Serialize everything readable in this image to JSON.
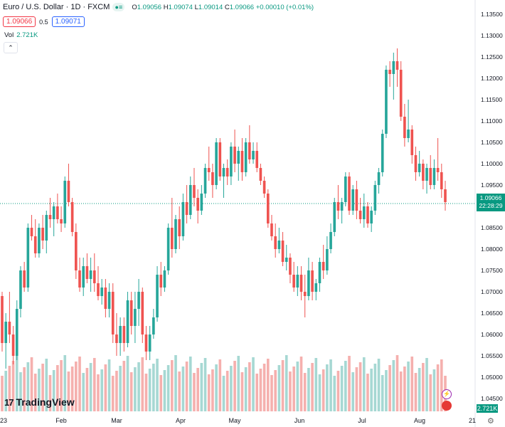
{
  "header": {
    "symbol": "Euro / U.S. Dollar · 1D · FXCM",
    "open_label": "O",
    "open": "1.09056",
    "high_label": "H",
    "high": "1.09074",
    "low_label": "L",
    "low": "1.09014",
    "close_label": "C",
    "close": "1.09066",
    "change": "+0.00010 (+0.01%)"
  },
  "trade": {
    "sell": "1.09066",
    "spread": "0.5",
    "buy": "1.09071"
  },
  "volume": {
    "label": "Vol",
    "value": "2.721K",
    "badge": "2.721K"
  },
  "price_badge": {
    "price": "1.09066",
    "countdown": "22:28:29"
  },
  "brand": {
    "name": "TradingView",
    "mark": "17"
  },
  "colors": {
    "up": "#26a69a",
    "down": "#ef5350",
    "vol_up": "#a6d8d3",
    "vol_down": "#f5b0ae",
    "badge": "#089981"
  },
  "chart_data": {
    "type": "candlestick",
    "title": "Euro / U.S. Dollar · 1D · FXCM",
    "ylim": [
      1.042,
      1.136
    ],
    "y_ticks": [
      "1.13500",
      "1.13000",
      "1.12500",
      "1.12000",
      "1.11500",
      "1.11000",
      "1.10500",
      "1.10000",
      "1.09500",
      "1.09000",
      "1.08500",
      "1.08000",
      "1.07500",
      "1.07000",
      "1.06500",
      "1.06000",
      "1.05500",
      "1.05000",
      "1.04500"
    ],
    "x_labels": [
      "23",
      "Feb",
      "Mar",
      "Apr",
      "May",
      "Jun",
      "Jul",
      "Aug",
      "21"
    ],
    "last_price": 1.09066,
    "ohlc_approx": [
      [
        1.069,
        1.07,
        1.056,
        1.058
      ],
      [
        1.058,
        1.065,
        1.052,
        1.063
      ],
      [
        1.063,
        1.07,
        1.058,
        1.06
      ],
      [
        1.06,
        1.062,
        1.053,
        1.055
      ],
      [
        1.055,
        1.068,
        1.054,
        1.066
      ],
      [
        1.066,
        1.076,
        1.064,
        1.075
      ],
      [
        1.075,
        1.077,
        1.07,
        1.071
      ],
      [
        1.071,
        1.086,
        1.07,
        1.085
      ],
      [
        1.085,
        1.088,
        1.082,
        1.083
      ],
      [
        1.083,
        1.087,
        1.078,
        1.079
      ],
      [
        1.079,
        1.086,
        1.078,
        1.085
      ],
      [
        1.085,
        1.088,
        1.08,
        1.082
      ],
      [
        1.082,
        1.089,
        1.079,
        1.088
      ],
      [
        1.088,
        1.092,
        1.085,
        1.087
      ],
      [
        1.087,
        1.091,
        1.083,
        1.09
      ],
      [
        1.09,
        1.093,
        1.086,
        1.087
      ],
      [
        1.087,
        1.09,
        1.084,
        1.086
      ],
      [
        1.086,
        1.097,
        1.085,
        1.096
      ],
      [
        1.096,
        1.1,
        1.09,
        1.091
      ],
      [
        1.091,
        1.092,
        1.083,
        1.084
      ],
      [
        1.084,
        1.086,
        1.073,
        1.075
      ],
      [
        1.075,
        1.078,
        1.07,
        1.071
      ],
      [
        1.071,
        1.078,
        1.069,
        1.076
      ],
      [
        1.076,
        1.079,
        1.072,
        1.073
      ],
      [
        1.073,
        1.078,
        1.07,
        1.075
      ],
      [
        1.075,
        1.079,
        1.07,
        1.072
      ],
      [
        1.072,
        1.076,
        1.068,
        1.069
      ],
      [
        1.069,
        1.073,
        1.067,
        1.071
      ],
      [
        1.071,
        1.073,
        1.064,
        1.066
      ],
      [
        1.066,
        1.072,
        1.064,
        1.07
      ],
      [
        1.07,
        1.072,
        1.058,
        1.06
      ],
      [
        1.06,
        1.065,
        1.055,
        1.058
      ],
      [
        1.058,
        1.064,
        1.055,
        1.062
      ],
      [
        1.062,
        1.064,
        1.056,
        1.058
      ],
      [
        1.058,
        1.07,
        1.057,
        1.068
      ],
      [
        1.068,
        1.07,
        1.06,
        1.062
      ],
      [
        1.062,
        1.07,
        1.058,
        1.066
      ],
      [
        1.066,
        1.073,
        1.062,
        1.07
      ],
      [
        1.07,
        1.071,
        1.058,
        1.06
      ],
      [
        1.06,
        1.062,
        1.054,
        1.056
      ],
      [
        1.056,
        1.062,
        1.054,
        1.06
      ],
      [
        1.06,
        1.066,
        1.059,
        1.064
      ],
      [
        1.064,
        1.076,
        1.063,
        1.074
      ],
      [
        1.074,
        1.077,
        1.069,
        1.071
      ],
      [
        1.071,
        1.076,
        1.07,
        1.075
      ],
      [
        1.075,
        1.086,
        1.074,
        1.085
      ],
      [
        1.085,
        1.092,
        1.078,
        1.08
      ],
      [
        1.08,
        1.088,
        1.079,
        1.087
      ],
      [
        1.087,
        1.09,
        1.08,
        1.083
      ],
      [
        1.083,
        1.093,
        1.082,
        1.091
      ],
      [
        1.091,
        1.095,
        1.086,
        1.088
      ],
      [
        1.088,
        1.097,
        1.087,
        1.095
      ],
      [
        1.095,
        1.099,
        1.09,
        1.092
      ],
      [
        1.092,
        1.094,
        1.086,
        1.089
      ],
      [
        1.089,
        1.095,
        1.088,
        1.093
      ],
      [
        1.093,
        1.1,
        1.092,
        1.099
      ],
      [
        1.099,
        1.104,
        1.096,
        1.098
      ],
      [
        1.098,
        1.1,
        1.092,
        1.095
      ],
      [
        1.095,
        1.106,
        1.094,
        1.105
      ],
      [
        1.105,
        1.106,
        1.096,
        1.097
      ],
      [
        1.097,
        1.1,
        1.092,
        1.099
      ],
      [
        1.099,
        1.101,
        1.095,
        1.097
      ],
      [
        1.097,
        1.105,
        1.095,
        1.104
      ],
      [
        1.104,
        1.108,
        1.098,
        1.1
      ],
      [
        1.1,
        1.104,
        1.096,
        1.103
      ],
      [
        1.103,
        1.106,
        1.096,
        1.098
      ],
      [
        1.098,
        1.106,
        1.097,
        1.105
      ],
      [
        1.105,
        1.109,
        1.1,
        1.101
      ],
      [
        1.101,
        1.105,
        1.1,
        1.103
      ],
      [
        1.103,
        1.105,
        1.098,
        1.099
      ],
      [
        1.099,
        1.1,
        1.095,
        1.096
      ],
      [
        1.096,
        1.097,
        1.092,
        1.093
      ],
      [
        1.093,
        1.094,
        1.085,
        1.086
      ],
      [
        1.086,
        1.088,
        1.082,
        1.083
      ],
      [
        1.083,
        1.086,
        1.078,
        1.08
      ],
      [
        1.08,
        1.085,
        1.079,
        1.082
      ],
      [
        1.082,
        1.084,
        1.076,
        1.077
      ],
      [
        1.077,
        1.081,
        1.075,
        1.078
      ],
      [
        1.078,
        1.079,
        1.072,
        1.074
      ],
      [
        1.074,
        1.077,
        1.07,
        1.071
      ],
      [
        1.071,
        1.076,
        1.069,
        1.074
      ],
      [
        1.074,
        1.076,
        1.068,
        1.07
      ],
      [
        1.07,
        1.074,
        1.064,
        1.069
      ],
      [
        1.069,
        1.078,
        1.068,
        1.075
      ],
      [
        1.075,
        1.077,
        1.068,
        1.07
      ],
      [
        1.07,
        1.073,
        1.068,
        1.072
      ],
      [
        1.072,
        1.078,
        1.07,
        1.077
      ],
      [
        1.077,
        1.081,
        1.073,
        1.075
      ],
      [
        1.075,
        1.083,
        1.074,
        1.08
      ],
      [
        1.08,
        1.086,
        1.079,
        1.084
      ],
      [
        1.084,
        1.092,
        1.083,
        1.091
      ],
      [
        1.091,
        1.095,
        1.087,
        1.089
      ],
      [
        1.089,
        1.092,
        1.086,
        1.091
      ],
      [
        1.091,
        1.098,
        1.09,
        1.097
      ],
      [
        1.097,
        1.098,
        1.088,
        1.089
      ],
      [
        1.089,
        1.095,
        1.088,
        1.094
      ],
      [
        1.094,
        1.096,
        1.087,
        1.089
      ],
      [
        1.089,
        1.092,
        1.086,
        1.087
      ],
      [
        1.087,
        1.093,
        1.085,
        1.09
      ],
      [
        1.09,
        1.091,
        1.085,
        1.086
      ],
      [
        1.086,
        1.09,
        1.084,
        1.089
      ],
      [
        1.089,
        1.096,
        1.088,
        1.095
      ],
      [
        1.095,
        1.099,
        1.093,
        1.098
      ],
      [
        1.098,
        1.108,
        1.097,
        1.107
      ],
      [
        1.107,
        1.123,
        1.106,
        1.122
      ],
      [
        1.122,
        1.124,
        1.118,
        1.121
      ],
      [
        1.121,
        1.126,
        1.115,
        1.124
      ],
      [
        1.124,
        1.127,
        1.118,
        1.122
      ],
      [
        1.122,
        1.124,
        1.11,
        1.111
      ],
      [
        1.111,
        1.114,
        1.104,
        1.106
      ],
      [
        1.106,
        1.115,
        1.105,
        1.108
      ],
      [
        1.108,
        1.109,
        1.1,
        1.102
      ],
      [
        1.102,
        1.104,
        1.096,
        1.098
      ],
      [
        1.098,
        1.103,
        1.097,
        1.1
      ],
      [
        1.1,
        1.101,
        1.094,
        1.096
      ],
      [
        1.096,
        1.1,
        1.093,
        1.099
      ],
      [
        1.099,
        1.102,
        1.094,
        1.095
      ],
      [
        1.095,
        1.101,
        1.094,
        1.099
      ],
      [
        1.099,
        1.106,
        1.096,
        1.098
      ],
      [
        1.098,
        1.1,
        1.092,
        1.094
      ],
      [
        1.094,
        1.096,
        1.089,
        1.091
      ]
    ],
    "volume_approx": [
      1,
      1,
      1,
      1,
      1,
      1,
      1,
      1,
      1,
      1,
      1,
      1,
      1,
      1,
      1,
      1,
      1,
      1,
      1,
      1,
      1,
      1,
      1,
      1,
      1,
      1,
      1,
      1,
      1,
      1,
      1,
      1,
      1,
      1,
      1,
      1,
      1,
      1,
      1,
      1,
      1,
      1,
      1,
      1,
      1,
      1,
      1,
      1,
      1,
      1,
      1,
      1,
      1,
      1,
      1,
      1,
      1,
      1,
      1,
      1,
      1,
      1,
      1,
      1,
      1,
      1,
      1,
      1,
      1,
      1,
      1,
      1,
      1,
      1,
      1,
      1,
      1,
      1,
      1,
      1,
      1,
      1,
      1,
      1,
      1,
      1,
      1,
      1,
      1,
      1,
      1,
      1,
      1,
      1,
      1,
      1,
      1,
      1,
      1,
      1,
      1,
      1,
      1,
      1,
      1,
      1,
      1,
      1,
      1,
      1,
      1,
      1,
      1,
      1,
      1,
      1,
      1,
      1,
      1,
      1,
      1
    ]
  }
}
